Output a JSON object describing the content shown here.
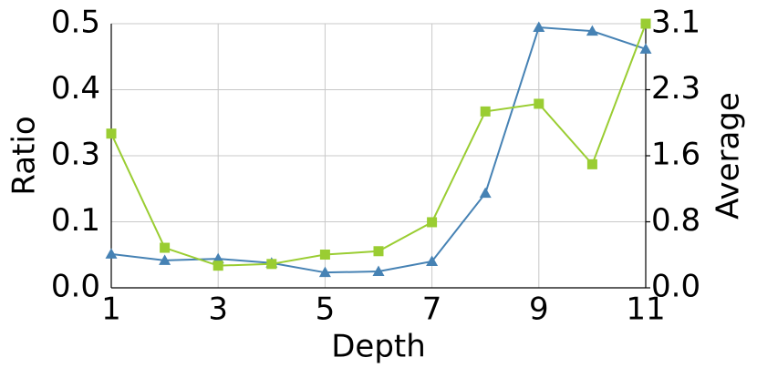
{
  "chart_data": {
    "type": "line",
    "xlabel": "Depth",
    "ylabel": "Ratio",
    "y2label": "Average",
    "x": [
      1,
      2,
      3,
      4,
      5,
      6,
      7,
      8,
      9,
      10,
      11
    ],
    "xlim": [
      1,
      11
    ],
    "xticks": [
      1,
      3,
      5,
      7,
      9,
      11
    ],
    "ylim": [
      0,
      0.5
    ],
    "yticks": [
      {
        "value": 0,
        "label": "0.0"
      },
      {
        "value": 0.125,
        "label": "0.1"
      },
      {
        "value": 0.25,
        "label": "0.3"
      },
      {
        "value": 0.375,
        "label": "0.4"
      },
      {
        "value": 0.5,
        "label": "0.5"
      }
    ],
    "y2lim": [
      0,
      3.1
    ],
    "y2ticks": [
      {
        "value": 0,
        "label": "0.0"
      },
      {
        "value": 0.775,
        "label": "0.8"
      },
      {
        "value": 1.55,
        "label": "1.6"
      },
      {
        "value": 2.325,
        "label": "2.3"
      },
      3.1
    ],
    "grid": true,
    "series": [
      {
        "name": "Ratio",
        "color": "#4682b4",
        "marker": "triangle",
        "axis": "y",
        "values": [
          0.064,
          0.052,
          0.055,
          0.047,
          0.029,
          0.031,
          0.05,
          0.179,
          0.493,
          0.486,
          0.452
        ]
      },
      {
        "name": "Average",
        "color": "#9acd32",
        "marker": "square",
        "axis": "y2",
        "values": [
          1.81,
          0.47,
          0.26,
          0.28,
          0.39,
          0.43,
          0.77,
          2.07,
          2.16,
          1.45,
          3.1
        ]
      }
    ]
  }
}
